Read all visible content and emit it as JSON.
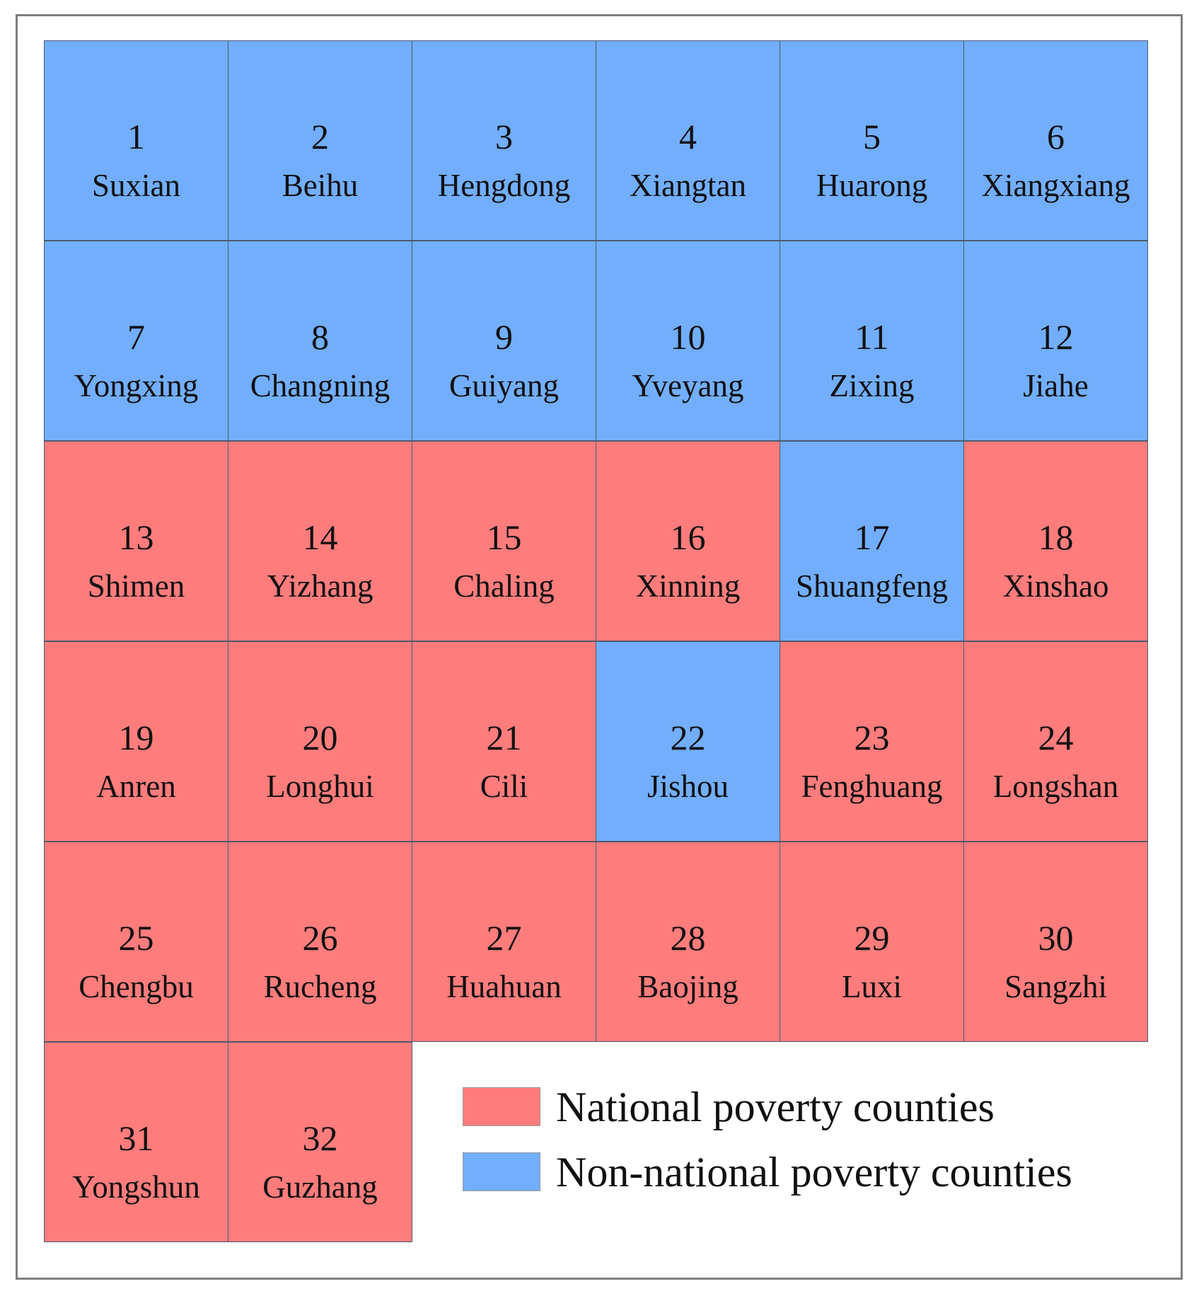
{
  "colors": {
    "national": "#ff7c7c",
    "non_national": "#72aefc"
  },
  "legend": [
    {
      "label": "National poverty counties",
      "category": "national"
    },
    {
      "label": "Non-national poverty counties",
      "category": "non_national"
    }
  ],
  "counties": [
    {
      "number": "1",
      "name": "Suxian",
      "category": "non_national"
    },
    {
      "number": "2",
      "name": "Beihu",
      "category": "non_national"
    },
    {
      "number": "3",
      "name": "Hengdong",
      "category": "non_national"
    },
    {
      "number": "4",
      "name": "Xiangtan",
      "category": "non_national"
    },
    {
      "number": "5",
      "name": "Huarong",
      "category": "non_national"
    },
    {
      "number": "6",
      "name": "Xiangxiang",
      "category": "non_national"
    },
    {
      "number": "7",
      "name": "Yongxing",
      "category": "non_national"
    },
    {
      "number": "8",
      "name": "Changning",
      "category": "non_national"
    },
    {
      "number": "9",
      "name": "Guiyang",
      "category": "non_national"
    },
    {
      "number": "10",
      "name": "Yveyang",
      "category": "non_national"
    },
    {
      "number": "11",
      "name": "Zixing",
      "category": "non_national"
    },
    {
      "number": "12",
      "name": "Jiahe",
      "category": "non_national"
    },
    {
      "number": "13",
      "name": "Shimen",
      "category": "national"
    },
    {
      "number": "14",
      "name": "Yizhang",
      "category": "national"
    },
    {
      "number": "15",
      "name": "Chaling",
      "category": "national"
    },
    {
      "number": "16",
      "name": "Xinning",
      "category": "national"
    },
    {
      "number": "17",
      "name": "Shuangfeng",
      "category": "non_national"
    },
    {
      "number": "18",
      "name": "Xinshao",
      "category": "national"
    },
    {
      "number": "19",
      "name": "Anren",
      "category": "national"
    },
    {
      "number": "20",
      "name": "Longhui",
      "category": "national"
    },
    {
      "number": "21",
      "name": "Cili",
      "category": "national"
    },
    {
      "number": "22",
      "name": "Jishou",
      "category": "non_national"
    },
    {
      "number": "23",
      "name": "Fenghuang",
      "category": "national"
    },
    {
      "number": "24",
      "name": "Longshan",
      "category": "national"
    },
    {
      "number": "25",
      "name": "Chengbu",
      "category": "national"
    },
    {
      "number": "26",
      "name": "Rucheng",
      "category": "national"
    },
    {
      "number": "27",
      "name": "Huahuan",
      "category": "national"
    },
    {
      "number": "28",
      "name": "Baojing",
      "category": "national"
    },
    {
      "number": "29",
      "name": "Luxi",
      "category": "national"
    },
    {
      "number": "30",
      "name": "Sangzhi",
      "category": "national"
    },
    {
      "number": "31",
      "name": "Yongshun",
      "category": "national"
    },
    {
      "number": "32",
      "name": "Guzhang",
      "category": "national"
    }
  ]
}
